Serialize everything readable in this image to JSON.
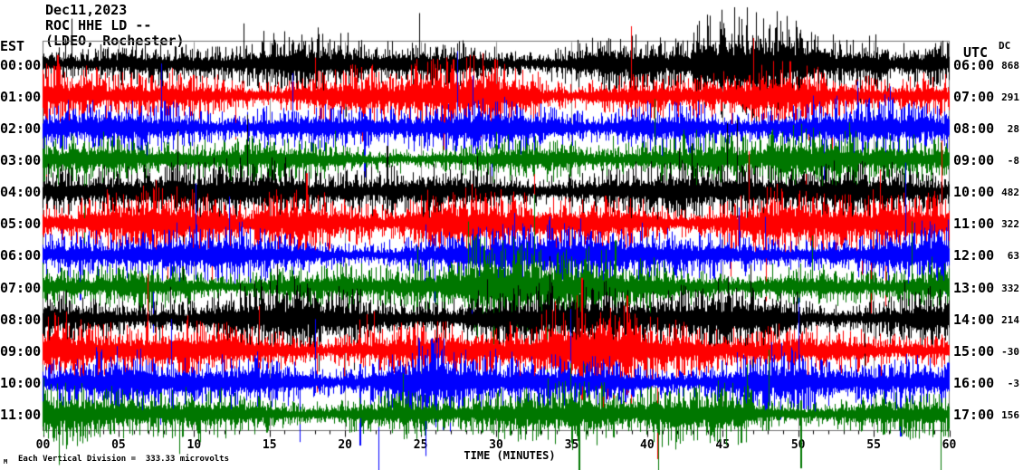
{
  "header": {
    "date": "Dec11,2023",
    "station": "ROC HHE LD --",
    "location": "(LDEO, Rochester)"
  },
  "left_axis": {
    "header": "EST"
  },
  "right_axis": {
    "header": "UTC",
    "dc_header": "DC"
  },
  "x_axis": {
    "title": "TIME (MINUTES)",
    "labels": [
      "00",
      "05",
      "10",
      "15",
      "20",
      "25",
      "30",
      "35",
      "40",
      "45",
      "50",
      "55",
      "60"
    ],
    "range_minutes": [
      0,
      60
    ],
    "major_tick_minutes": 5,
    "minor_tick_minutes": 1
  },
  "footer": {
    "scale_note": "Each Vertical Division =  333.33 microvolts",
    "watermark": "M"
  },
  "chart_data": {
    "type": "seismogram-helicorder",
    "title": "ROC HHE LD -- (LDEO, Rochester) Dec11,2023",
    "timezone_left": "EST",
    "timezone_right": "UTC",
    "x_range_minutes": [
      0,
      60
    ],
    "x_tick_minutes": 5,
    "grid": true,
    "grid_color": "#909090",
    "frame_color": "#707070",
    "scale_microvolts_per_division": 333.33,
    "colors_cycle": [
      "#000000",
      "#ff0000",
      "#0000ff",
      "#007700"
    ],
    "seed": 20231211,
    "rows": [
      {
        "est": "00:00",
        "utc": "06:00",
        "dc": "868",
        "color": "#000000",
        "amp": 13,
        "bursts": [
          [
            43,
            56,
            1.9
          ]
        ],
        "spikes": []
      },
      {
        "est": "01:00",
        "utc": "07:00",
        "dc": "291",
        "color": "#ff0000",
        "amp": 13,
        "bursts": [
          [
            24,
            33,
            1.35
          ]
        ],
        "spikes": [
          [
            1.0,
            45,
            20
          ],
          [
            27.2,
            40,
            25
          ],
          [
            49.5,
            38,
            18
          ]
        ]
      },
      {
        "est": "02:00",
        "utc": "08:00",
        "dc": "28",
        "color": "#0000ff",
        "amp": 12,
        "bursts": [
          [
            8,
            16,
            1.25
          ],
          [
            38,
            44,
            1.35
          ]
        ],
        "spikes": [
          [
            21.3,
            15,
            55
          ]
        ]
      },
      {
        "est": "03:00",
        "utc": "09:00",
        "dc": "-8",
        "color": "#007700",
        "amp": 10,
        "bursts": [
          [
            30,
            36,
            1.5
          ],
          [
            48,
            54,
            1.7
          ]
        ],
        "spikes": []
      },
      {
        "est": "04:00",
        "utc": "10:00",
        "dc": "482",
        "color": "#000000",
        "amp": 13,
        "bursts": [
          [
            20,
            30,
            1.35
          ]
        ],
        "spikes": [
          [
            22.8,
            50,
            25
          ]
        ]
      },
      {
        "est": "05:00",
        "utc": "11:00",
        "dc": "322",
        "color": "#ff0000",
        "amp": 15,
        "bursts": [
          [
            14,
            22,
            1.3
          ]
        ],
        "spikes": [
          [
            17.5,
            55,
            30
          ]
        ]
      },
      {
        "est": "06:00",
        "utc": "12:00",
        "dc": "63",
        "color": "#0000ff",
        "amp": 13,
        "bursts": [
          [
            33,
            40,
            1.3
          ]
        ],
        "spikes": [
          [
            2.5,
            20,
            50
          ]
        ]
      },
      {
        "est": "07:00",
        "utc": "13:00",
        "dc": "332",
        "color": "#007700",
        "amp": 13,
        "bursts": [
          [
            28,
            38,
            1.5
          ]
        ],
        "spikes": [
          [
            35.9,
            30,
            95
          ]
        ]
      },
      {
        "est": "08:00",
        "utc": "14:00",
        "dc": "214",
        "color": "#000000",
        "amp": 15,
        "bursts": [
          [
            28,
            38,
            1.3
          ],
          [
            44,
            50,
            1.25
          ]
        ],
        "spikes": []
      },
      {
        "est": "09:00",
        "utc": "15:00",
        "dc": "-30",
        "color": "#ff0000",
        "amp": 15,
        "bursts": [
          [
            33,
            39,
            1.4
          ]
        ],
        "spikes": [
          [
            35.7,
            80,
            55
          ]
        ]
      },
      {
        "est": "10:00",
        "utc": "16:00",
        "dc": "-3",
        "color": "#0000ff",
        "amp": 14,
        "bursts": [
          [
            20,
            27,
            1.3
          ]
        ],
        "spikes": [
          [
            21.0,
            20,
            70
          ],
          [
            56.8,
            18,
            60
          ]
        ]
      },
      {
        "est": "11:00",
        "utc": "17:00",
        "dc": "156",
        "color": "#007700",
        "amp": 13,
        "bursts": [
          [
            40,
            47,
            1.35
          ]
        ],
        "spikes": [
          [
            35.5,
            20,
            65
          ],
          [
            50.2,
            15,
            60
          ]
        ]
      }
    ]
  }
}
